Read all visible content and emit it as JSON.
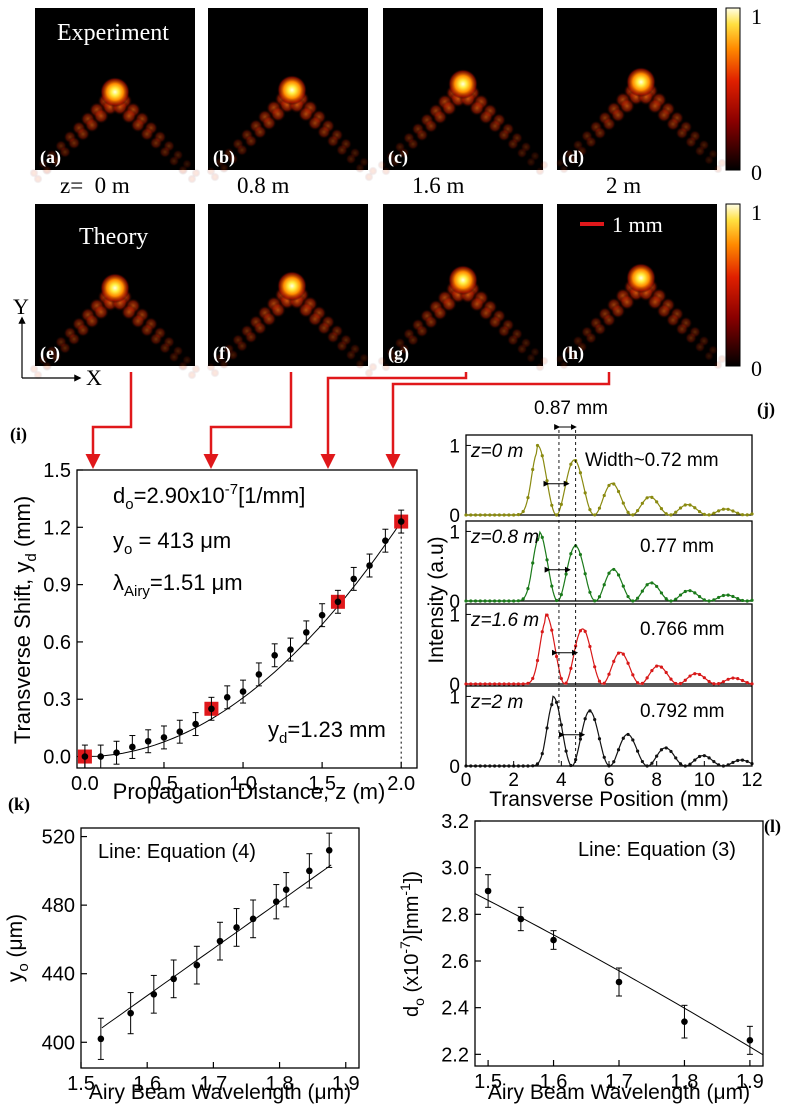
{
  "images": {
    "experiment_label": "Experiment",
    "theory_label": "Theory",
    "panels_top": [
      "(a)",
      "(b)",
      "(c)",
      "(d)"
    ],
    "panels_bottom": [
      "(e)",
      "(f)",
      "(g)",
      "(h)"
    ],
    "z_labels": [
      "z=  0 m",
      "0.8 m",
      "1.6 m",
      "2 m"
    ],
    "scale_bar": "1 mm",
    "colorbar_max": "1",
    "colorbar_min": "0",
    "axis_y": "Y",
    "axis_x": "X",
    "colors": {
      "arrow": "#e0181b",
      "marker_red": "#e0181b",
      "black": "#000000"
    }
  },
  "chart_data": [
    {
      "id": "i",
      "type": "scatter",
      "panel_label": "(i)",
      "xlabel": "Propagation Distance,  z (m)",
      "ylabel": "Transverse Shift, y",
      "ylabel_sub": "d",
      "ylabel_unit": " (mm)",
      "xlim": [
        -0.05,
        2.1
      ],
      "ylim": [
        -0.06,
        1.5
      ],
      "xticks": [
        "0.0",
        "0.5",
        "1.0",
        "1.5",
        "2.0"
      ],
      "yticks": [
        "0.0",
        "0.3",
        "0.6",
        "0.9",
        "1.2",
        "1.5"
      ],
      "annotations": {
        "d0": "d",
        "d0_sub": "o",
        "d0_rest": "=2.90x10",
        "d0_sup": "-7",
        "d0_unit": "[1/mm]",
        "y0": "y",
        "y0_sub": "o",
        "y0_rest": " = 413 μm",
        "lambda": "λ",
        "lambda_sub": "Airy",
        "lambda_rest": "=1.51 μm",
        "yd": "y",
        "yd_sub": "d",
        "yd_rest": "=1.23 mm"
      },
      "series": [
        {
          "x": [
            0.0,
            0.1,
            0.2,
            0.3,
            0.4,
            0.5,
            0.6,
            0.7,
            0.8,
            0.9,
            1.0,
            1.1,
            1.2,
            1.3,
            1.4,
            1.5,
            1.6,
            1.7,
            1.8,
            1.9,
            2.0
          ],
          "y": [
            0.0,
            0.0,
            0.02,
            0.05,
            0.08,
            0.1,
            0.13,
            0.17,
            0.25,
            0.31,
            0.34,
            0.43,
            0.53,
            0.56,
            0.65,
            0.74,
            0.81,
            0.93,
            1.0,
            1.13,
            1.23
          ],
          "err": 0.06
        }
      ],
      "highlight_x": [
        0.0,
        0.8,
        1.6,
        2.0
      ]
    },
    {
      "id": "j",
      "type": "line",
      "panel_label": "(j)",
      "xlabel": "Transverse Position (mm)",
      "ylabel": "Intensity (a.u)",
      "xlim": [
        0,
        12
      ],
      "ylim": [
        0,
        1.15
      ],
      "xticks": [
        "0",
        "2",
        "4",
        "6",
        "8",
        "10",
        "12"
      ],
      "yticks": [
        "0",
        "1"
      ],
      "top_annotation": "0.87 mm",
      "series": [
        {
          "name": "z=0 m",
          "label_z": "z",
          "label_rest": "=0 m",
          "width_label": "Width~0.72 mm",
          "color": "#8a8a10",
          "peak": 3.9
        },
        {
          "name": "z=0.8 m",
          "label_z": "z",
          "label_rest": "=0.8 m",
          "width_label": "0.77 mm",
          "color": "#1a7a1a",
          "peak": 3.95
        },
        {
          "name": "z=1.6 m",
          "label_z": "z",
          "label_rest": "=1.6 m",
          "width_label": "0.766 mm",
          "color": "#d81818",
          "peak": 4.25
        },
        {
          "name": "z=2 m",
          "label_z": "z",
          "label_rest": "=2 m",
          "width_label": "0.792 mm",
          "color": "#111111",
          "peak": 4.55
        }
      ]
    },
    {
      "id": "k",
      "type": "scatter",
      "panel_label": "(k)",
      "xlabel": "Airy Beam Wavelength (μm)",
      "ylabel": "y",
      "ylabel_sub": "o",
      "ylabel_unit": " (μm)",
      "legend_text": "Line: Equation (4)",
      "xlim": [
        1.5,
        1.92
      ],
      "ylim": [
        385,
        525
      ],
      "xticks": [
        "1.5",
        "1.6",
        "1.7",
        "1.8",
        "1.9"
      ],
      "yticks": [
        "400",
        "440",
        "480",
        "520"
      ],
      "x": [
        1.53,
        1.575,
        1.61,
        1.64,
        1.675,
        1.71,
        1.735,
        1.76,
        1.795,
        1.81,
        1.845,
        1.875
      ],
      "y": [
        402,
        417,
        428,
        437,
        445,
        459,
        467,
        472,
        482,
        489,
        500,
        512
      ],
      "err": [
        12,
        12,
        11,
        11,
        11,
        11,
        11,
        11,
        10,
        10,
        10,
        10
      ],
      "fit": [
        [
          1.53,
          408
        ],
        [
          1.88,
          504
        ]
      ]
    },
    {
      "id": "l",
      "type": "scatter",
      "panel_label": "(l)",
      "xlabel": "Airy Beam Wavelength (μm)",
      "ylabel": "d",
      "ylabel_sub": "o",
      "ylabel_unit": " (x10",
      "ylabel_sup": "-7",
      "ylabel_tail": ")[mm",
      "ylabel_sup2": "-1",
      "ylabel_end": "])",
      "legend_text": "Line: Equation (3)",
      "xlim": [
        1.48,
        1.92
      ],
      "ylim": [
        2.15,
        3.2
      ],
      "xticks": [
        "1.5",
        "1.6",
        "1.7",
        "1.8",
        "1.9"
      ],
      "yticks": [
        "2.2",
        "2.4",
        "2.6",
        "2.8",
        "3.0",
        "3.2"
      ],
      "x": [
        1.5,
        1.55,
        1.6,
        1.7,
        1.8,
        1.9
      ],
      "y": [
        2.9,
        2.78,
        2.69,
        2.51,
        2.34,
        2.26
      ],
      "err": [
        0.07,
        0.05,
        0.04,
        0.06,
        0.07,
        0.06
      ]
    }
  ]
}
